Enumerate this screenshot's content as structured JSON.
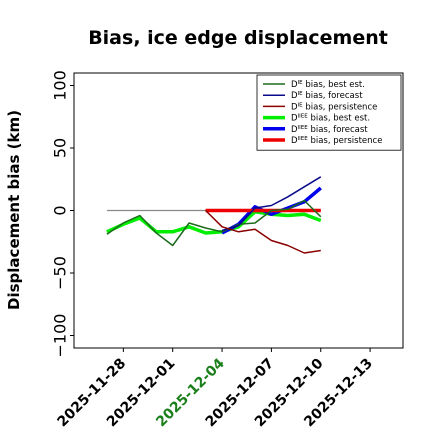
{
  "chart_data": {
    "type": "line",
    "title": "Bias, ice edge displacement",
    "ylabel": "Displacement bias (km)",
    "xlabel": "",
    "ylim": [
      -110,
      110
    ],
    "xlim": [
      "2025-11-25",
      "2025-12-15"
    ],
    "yticks": [
      -100,
      -50,
      0,
      50,
      100
    ],
    "ytick_labels": [
      "−100",
      "−50",
      "0",
      "50",
      "100"
    ],
    "xticks": [
      "2025-11-28",
      "2025-12-01",
      "2025-12-04",
      "2025-12-07",
      "2025-12-10",
      "2025-12-13"
    ],
    "highlight_tick": "2025-12-04",
    "highlight_color": "#1a7f1a",
    "legend_position": "upper-right",
    "reference_line": {
      "y": 0,
      "x_start": "2025-11-27",
      "x_end": "2025-12-10",
      "color": "#888888"
    },
    "series": [
      {
        "name": "Dᴵᴱ bias, best est.",
        "legend_main": "D",
        "legend_sup": "IE",
        "legend_rest": " bias, best est.",
        "color": "#1c6b1c",
        "width": 1.5,
        "x": [
          "2025-11-27",
          "2025-11-28",
          "2025-11-29",
          "2025-11-30",
          "2025-12-01",
          "2025-12-02",
          "2025-12-03",
          "2025-12-04",
          "2025-12-05",
          "2025-12-06",
          "2025-12-07",
          "2025-12-08",
          "2025-12-09",
          "2025-12-10"
        ],
        "values": [
          -19,
          -10,
          -4,
          -18,
          -28,
          -10,
          -14,
          -17,
          -11,
          -10,
          0,
          1,
          8,
          -5
        ]
      },
      {
        "name": "Dᴵᴱ bias, forecast",
        "legend_main": "D",
        "legend_sup": "IE",
        "legend_rest": " bias, forecast",
        "color": "#0a0a8a",
        "width": 1.5,
        "x": [
          "2025-12-04",
          "2025-12-05",
          "2025-12-06",
          "2025-12-07",
          "2025-12-08",
          "2025-12-09",
          "2025-12-10"
        ],
        "values": [
          -16,
          -12,
          2,
          4,
          11,
          19,
          27
        ]
      },
      {
        "name": "Dᴵᴱ bias, persistence",
        "legend_main": "D",
        "legend_sup": "IE",
        "legend_rest": " bias, persistence",
        "color": "#8b0000",
        "width": 1.5,
        "x": [
          "2025-12-03",
          "2025-12-04",
          "2025-12-05",
          "2025-12-06",
          "2025-12-07",
          "2025-12-08",
          "2025-12-09",
          "2025-12-10"
        ],
        "values": [
          0,
          -13,
          -17,
          -15,
          -24,
          -28,
          -34,
          -32
        ]
      },
      {
        "name": "Dᴵᴵᴱᴱ bias, best est.",
        "legend_main": "D",
        "legend_sup": "IIEE",
        "legend_rest": " bias, best est.",
        "color": "#00ee00",
        "width": 3.5,
        "x": [
          "2025-11-27",
          "2025-11-28",
          "2025-11-29",
          "2025-11-30",
          "2025-12-01",
          "2025-12-02",
          "2025-12-03",
          "2025-12-04",
          "2025-12-05",
          "2025-12-06",
          "2025-12-07",
          "2025-12-08",
          "2025-12-09",
          "2025-12-10"
        ],
        "values": [
          -17,
          -11,
          -6,
          -17,
          -17,
          -13,
          -18,
          -17,
          -13,
          -1,
          -3,
          -4,
          -3,
          -8
        ]
      },
      {
        "name": "Dᴵᴵᴱᴱ bias, forecast",
        "legend_main": "D",
        "legend_sup": "IIEE",
        "legend_rest": " bias, forecast",
        "color": "#0000ee",
        "width": 3.5,
        "x": [
          "2025-12-04",
          "2025-12-05",
          "2025-12-06",
          "2025-12-07",
          "2025-12-08",
          "2025-12-09",
          "2025-12-10"
        ],
        "values": [
          -18,
          -11,
          3,
          -3,
          2,
          7,
          18
        ]
      },
      {
        "name": "Dᴵᴵᴱᴱ bias, persistence",
        "legend_main": "D",
        "legend_sup": "IIEE",
        "legend_rest": " bias, persistence",
        "color": "#ee0000",
        "width": 3.5,
        "x": [
          "2025-12-03",
          "2025-12-04",
          "2025-12-05",
          "2025-12-06",
          "2025-12-07",
          "2025-12-08",
          "2025-12-09",
          "2025-12-10"
        ],
        "values": [
          0,
          0,
          0,
          0,
          0,
          0,
          0,
          0
        ]
      }
    ]
  }
}
